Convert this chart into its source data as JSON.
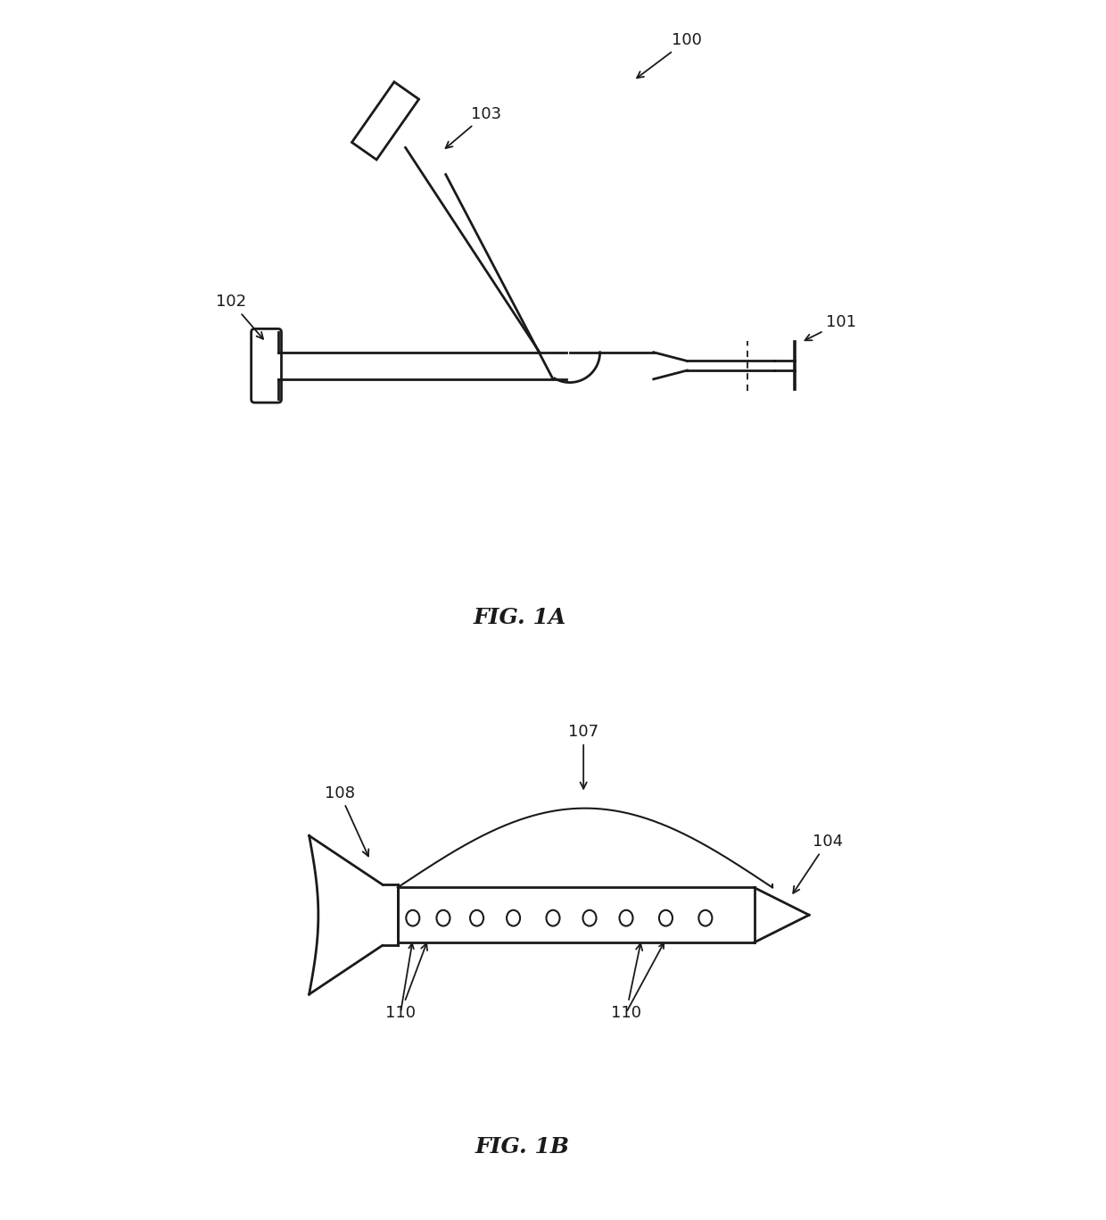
{
  "background_color": "#ffffff",
  "fig_width": 12.4,
  "fig_height": 13.67,
  "dpi": 100,
  "line_color": "#1a1a1a",
  "lw": 2.0,
  "annot_fs": 13,
  "fig1a_label": "FIG. 1A",
  "fig1b_label": "FIG. 1B"
}
